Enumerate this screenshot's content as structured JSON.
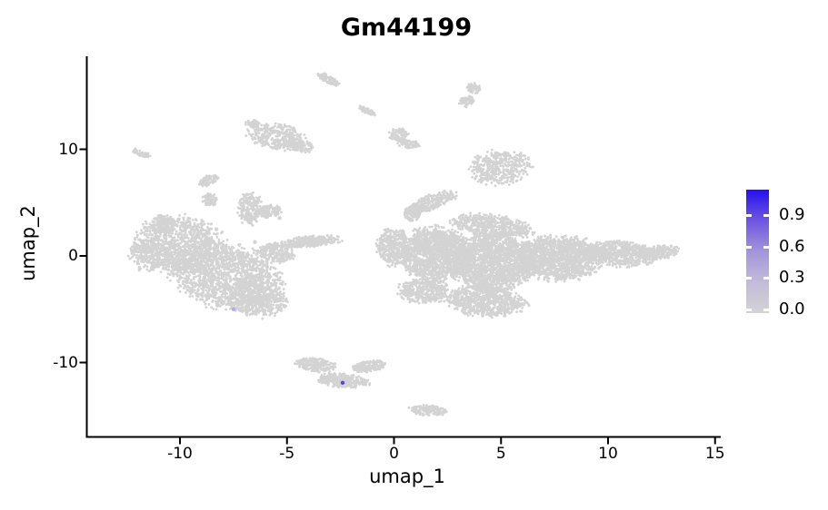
{
  "chart_data": {
    "type": "scatter",
    "title": "Gm44199",
    "xlabel": "umap_1",
    "ylabel": "umap_2",
    "xlim": [
      -14.3,
      15.3
    ],
    "ylim": [
      -16.8,
      18.7
    ],
    "grid": false,
    "background": "#ffffff",
    "point_color": "#d3d3d3",
    "axis_color": "#000000",
    "x_ticks": {
      "values": [
        -10,
        -5,
        0,
        5,
        10,
        15
      ],
      "labels": [
        "-10",
        "-5",
        "0",
        "5",
        "10",
        "15"
      ]
    },
    "y_ticks": {
      "values": [
        10,
        0,
        -10
      ],
      "labels": [
        "10",
        "0",
        "-10"
      ]
    },
    "colorbar": {
      "position": "right",
      "tick_labels": [
        "0.9",
        "0.6",
        "0.3",
        "0.0"
      ],
      "tick_values": [
        0.9,
        0.6,
        0.3,
        0.0
      ],
      "gradient_top_to_bottom": [
        "#2410ec",
        "#6e55e2",
        "#a295da",
        "#c2bbda",
        "#d3d3d3"
      ]
    },
    "clusters": [
      {
        "name": "left-body-upper",
        "cx": -9.9,
        "cy": 1.0,
        "a": 2.0,
        "b": 2.6,
        "rot": 10,
        "n": 1000
      },
      {
        "name": "left-body-main",
        "cx": -7.9,
        "cy": -1.9,
        "a": 2.6,
        "b": 2.9,
        "rot": 14,
        "n": 1700
      },
      {
        "name": "left-body-bottom",
        "cx": -6.4,
        "cy": -4.0,
        "a": 1.35,
        "b": 1.6,
        "rot": 10,
        "n": 450
      },
      {
        "name": "left-tip",
        "cx": -11.4,
        "cy": 0.2,
        "a": 0.95,
        "b": 1.5,
        "rot": -5,
        "n": 280
      },
      {
        "name": "left-ear",
        "cx": -10.8,
        "cy": 2.9,
        "a": 0.55,
        "b": 0.85,
        "rot": 0,
        "n": 130
      },
      {
        "name": "left-horn",
        "cx": -6.75,
        "cy": 4.5,
        "a": 0.5,
        "b": 1.5,
        "rot": 4,
        "n": 210
      },
      {
        "name": "left-horn-hook",
        "cx": -5.85,
        "cy": 4.2,
        "a": 0.55,
        "b": 0.65,
        "rot": 0,
        "n": 110
      },
      {
        "name": "left-arm",
        "cx": -3.9,
        "cy": 1.35,
        "a": 1.35,
        "b": 0.5,
        "rot": -4,
        "n": 280
      },
      {
        "name": "left-bridge",
        "cx": -5.5,
        "cy": 0.3,
        "a": 0.85,
        "b": 0.9,
        "rot": 0,
        "n": 220
      },
      {
        "name": "right-hook",
        "cx": 1.7,
        "cy": 5.0,
        "a": 1.2,
        "b": 0.7,
        "rot": -20,
        "n": 280
      },
      {
        "name": "right-hook-tail",
        "cx": 0.85,
        "cy": 4.0,
        "a": 0.4,
        "b": 0.75,
        "rot": 12,
        "n": 100
      },
      {
        "name": "right-left-lobe",
        "cx": -0.05,
        "cy": 0.9,
        "a": 0.75,
        "b": 1.65,
        "rot": 0,
        "n": 340
      },
      {
        "name": "right-body-left",
        "cx": 1.9,
        "cy": 0.2,
        "a": 1.55,
        "b": 2.4,
        "rot": 0,
        "n": 1500
      },
      {
        "name": "right-top-edge",
        "cx": 4.6,
        "cy": 2.8,
        "a": 1.8,
        "b": 0.95,
        "rot": 8,
        "n": 560
      },
      {
        "name": "right-body-mid",
        "cx": 4.6,
        "cy": -0.6,
        "a": 1.85,
        "b": 2.5,
        "rot": 0,
        "n": 1900
      },
      {
        "name": "right-body-right",
        "cx": 7.7,
        "cy": -0.2,
        "a": 1.95,
        "b": 1.95,
        "rot": 0,
        "n": 1500
      },
      {
        "name": "right-taper",
        "cx": 10.6,
        "cy": 0.2,
        "a": 1.55,
        "b": 1.15,
        "rot": 3,
        "n": 650
      },
      {
        "name": "right-tip",
        "cx": 12.4,
        "cy": 0.3,
        "a": 0.9,
        "b": 0.6,
        "rot": -8,
        "n": 220
      },
      {
        "name": "right-bottom",
        "cx": 4.3,
        "cy": -4.2,
        "a": 1.75,
        "b": 1.4,
        "rot": 4,
        "n": 800
      },
      {
        "name": "right-bottom-left",
        "cx": 1.4,
        "cy": -3.3,
        "a": 1.15,
        "b": 1.15,
        "rot": 0,
        "n": 380
      },
      {
        "name": "island-top-dash",
        "cx": -3.1,
        "cy": 16.6,
        "a": 0.55,
        "b": 0.32,
        "rot": 28,
        "n": 85
      },
      {
        "name": "island-mid-top",
        "cx": -5.5,
        "cy": 11.2,
        "a": 1.25,
        "b": 1.15,
        "rot": 8,
        "n": 340
      },
      {
        "name": "island-mid-top-right",
        "cx": -4.35,
        "cy": 10.3,
        "a": 0.55,
        "b": 0.5,
        "rot": 10,
        "n": 110
      },
      {
        "name": "island-mid-top-bump",
        "cx": -6.6,
        "cy": 12.4,
        "a": 0.35,
        "b": 0.35,
        "rot": 0,
        "n": 55
      },
      {
        "name": "island-dash2",
        "cx": -1.25,
        "cy": 13.6,
        "a": 0.4,
        "b": 0.26,
        "rot": 25,
        "n": 55
      },
      {
        "name": "island-zero-eleven-a",
        "cx": 0.2,
        "cy": 11.4,
        "a": 0.42,
        "b": 0.55,
        "rot": 0,
        "n": 95
      },
      {
        "name": "island-zero-eleven-b",
        "cx": 0.7,
        "cy": 10.5,
        "a": 0.5,
        "b": 0.38,
        "rot": 8,
        "n": 75
      },
      {
        "name": "island-twolobe-top",
        "cx": 3.75,
        "cy": 15.7,
        "a": 0.33,
        "b": 0.45,
        "rot": 15,
        "n": 55
      },
      {
        "name": "island-twolobe-bottom",
        "cx": 3.4,
        "cy": 14.5,
        "a": 0.33,
        "b": 0.48,
        "rot": -8,
        "n": 60
      },
      {
        "name": "island-five-eight",
        "cx": 5.0,
        "cy": 8.3,
        "a": 1.35,
        "b": 1.55,
        "rot": -6,
        "n": 430
      },
      {
        "name": "island-tiny-dash",
        "cx": -11.8,
        "cy": 9.6,
        "a": 0.44,
        "b": 0.28,
        "rot": 22,
        "n": 48
      },
      {
        "name": "island-s-top",
        "cx": -8.65,
        "cy": 7.1,
        "a": 0.44,
        "b": 0.42,
        "rot": -20,
        "n": 75
      },
      {
        "name": "island-s-bottom",
        "cx": -8.6,
        "cy": 5.3,
        "a": 0.34,
        "b": 0.55,
        "rot": 8,
        "n": 75
      },
      {
        "name": "island-bottom-upper-left",
        "cx": -3.7,
        "cy": -10.2,
        "a": 0.95,
        "b": 0.6,
        "rot": 8,
        "n": 210
      },
      {
        "name": "island-bottom-main",
        "cx": -2.4,
        "cy": -11.7,
        "a": 1.15,
        "b": 0.62,
        "rot": 4,
        "n": 300
      },
      {
        "name": "island-bottom-right",
        "cx": -1.2,
        "cy": -10.4,
        "a": 0.78,
        "b": 0.52,
        "rot": -8,
        "n": 150
      },
      {
        "name": "island-bottom-small",
        "cx": 1.6,
        "cy": -14.5,
        "a": 0.82,
        "b": 0.48,
        "rot": 6,
        "n": 140
      }
    ],
    "specks": [
      [
        -9.45,
        2.5
      ],
      [
        -8.8,
        2.05
      ],
      [
        -8.3,
        2.5
      ],
      [
        -6.5,
        1.3
      ],
      [
        -5.8,
        0.8
      ],
      [
        -5.35,
        3.55
      ]
    ],
    "highlighted_cells": [
      {
        "x": -2.4,
        "y": -11.9,
        "value": 0.9,
        "color": "#5b43dd"
      },
      {
        "x": -7.5,
        "y": -5.0,
        "value": 0.3,
        "color": "#b2aae6"
      }
    ]
  }
}
